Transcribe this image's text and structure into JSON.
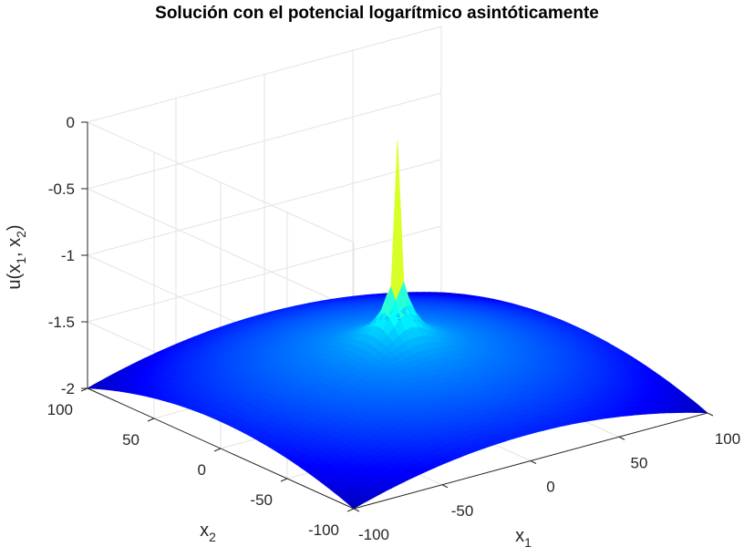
{
  "chart_data": {
    "type": "surface",
    "title": "Solución con el potencial logarítmico asintóticamente",
    "xlabel": {
      "base": "x",
      "sub": "1"
    },
    "ylabel": {
      "base": "x",
      "sub": "2"
    },
    "zlabel": {
      "prefix": "u(x",
      "sub1": "1",
      "sep": ", x",
      "sub2": "2",
      "suffix": ")"
    },
    "xlim": [
      -100,
      100
    ],
    "ylim": [
      -100,
      100
    ],
    "zlim": [
      -2,
      0
    ],
    "xticks": [
      "-100",
      "-50",
      "0",
      "50",
      "100"
    ],
    "yticks": [
      "-100",
      "-50",
      "0",
      "50",
      "100"
    ],
    "zticks": [
      "-2",
      "-1.5",
      "-1",
      "-0.5",
      "0"
    ],
    "grid": true,
    "colormap": "jet",
    "description_values": {
      "peak": {
        "x1": 0,
        "x2": 0,
        "u": -0.05
      },
      "corner_value": -2.0,
      "edge_mid_value": -1.85,
      "center_base_value": -1.6
    }
  }
}
